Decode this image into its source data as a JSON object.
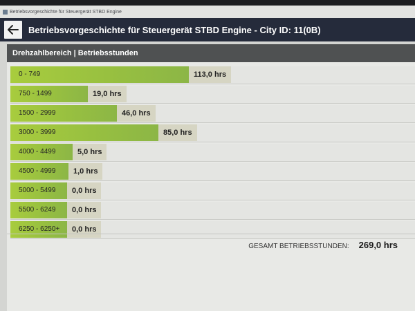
{
  "window": {
    "title": "Betriebsvorgeschichte für Steuergerät STBD Engine"
  },
  "header": {
    "title": "Betriebsvorgeschichte für Steuergerät STBD Engine - City ID: 11(0B)",
    "back_icon": "arrow-left-icon"
  },
  "table": {
    "header": "Drehzahlbereich | Betriebsstunden",
    "rows": [
      {
        "range": "0 - 749",
        "hours": "113,0 hrs",
        "value": 113.0
      },
      {
        "range": "750 - 1499",
        "hours": "19,0 hrs",
        "value": 19.0
      },
      {
        "range": "1500 - 2999",
        "hours": "46,0 hrs",
        "value": 46.0
      },
      {
        "range": "3000 - 3999",
        "hours": "85,0 hrs",
        "value": 85.0
      },
      {
        "range": "4000 - 4499",
        "hours": "5,0 hrs",
        "value": 5.0
      },
      {
        "range": "4500 - 4999",
        "hours": "1,0 hrs",
        "value": 1.0
      },
      {
        "range": "5000 - 5499",
        "hours": "0,0 hrs",
        "value": 0.0
      },
      {
        "range": "5500 - 6249",
        "hours": "0,0 hrs",
        "value": 0.0
      },
      {
        "range": "6250 - 6250+",
        "hours": "0,0 hrs",
        "value": 0.0
      }
    ]
  },
  "total": {
    "label": "GESAMT BETRIEBSSTUNDEN:",
    "value": "269,0 hrs"
  },
  "colors": {
    "bar": "#9ac43e",
    "header_bar": "#252b3b",
    "table_header": "#4f5152",
    "hours_label_bg": "#d6d5c3"
  }
}
